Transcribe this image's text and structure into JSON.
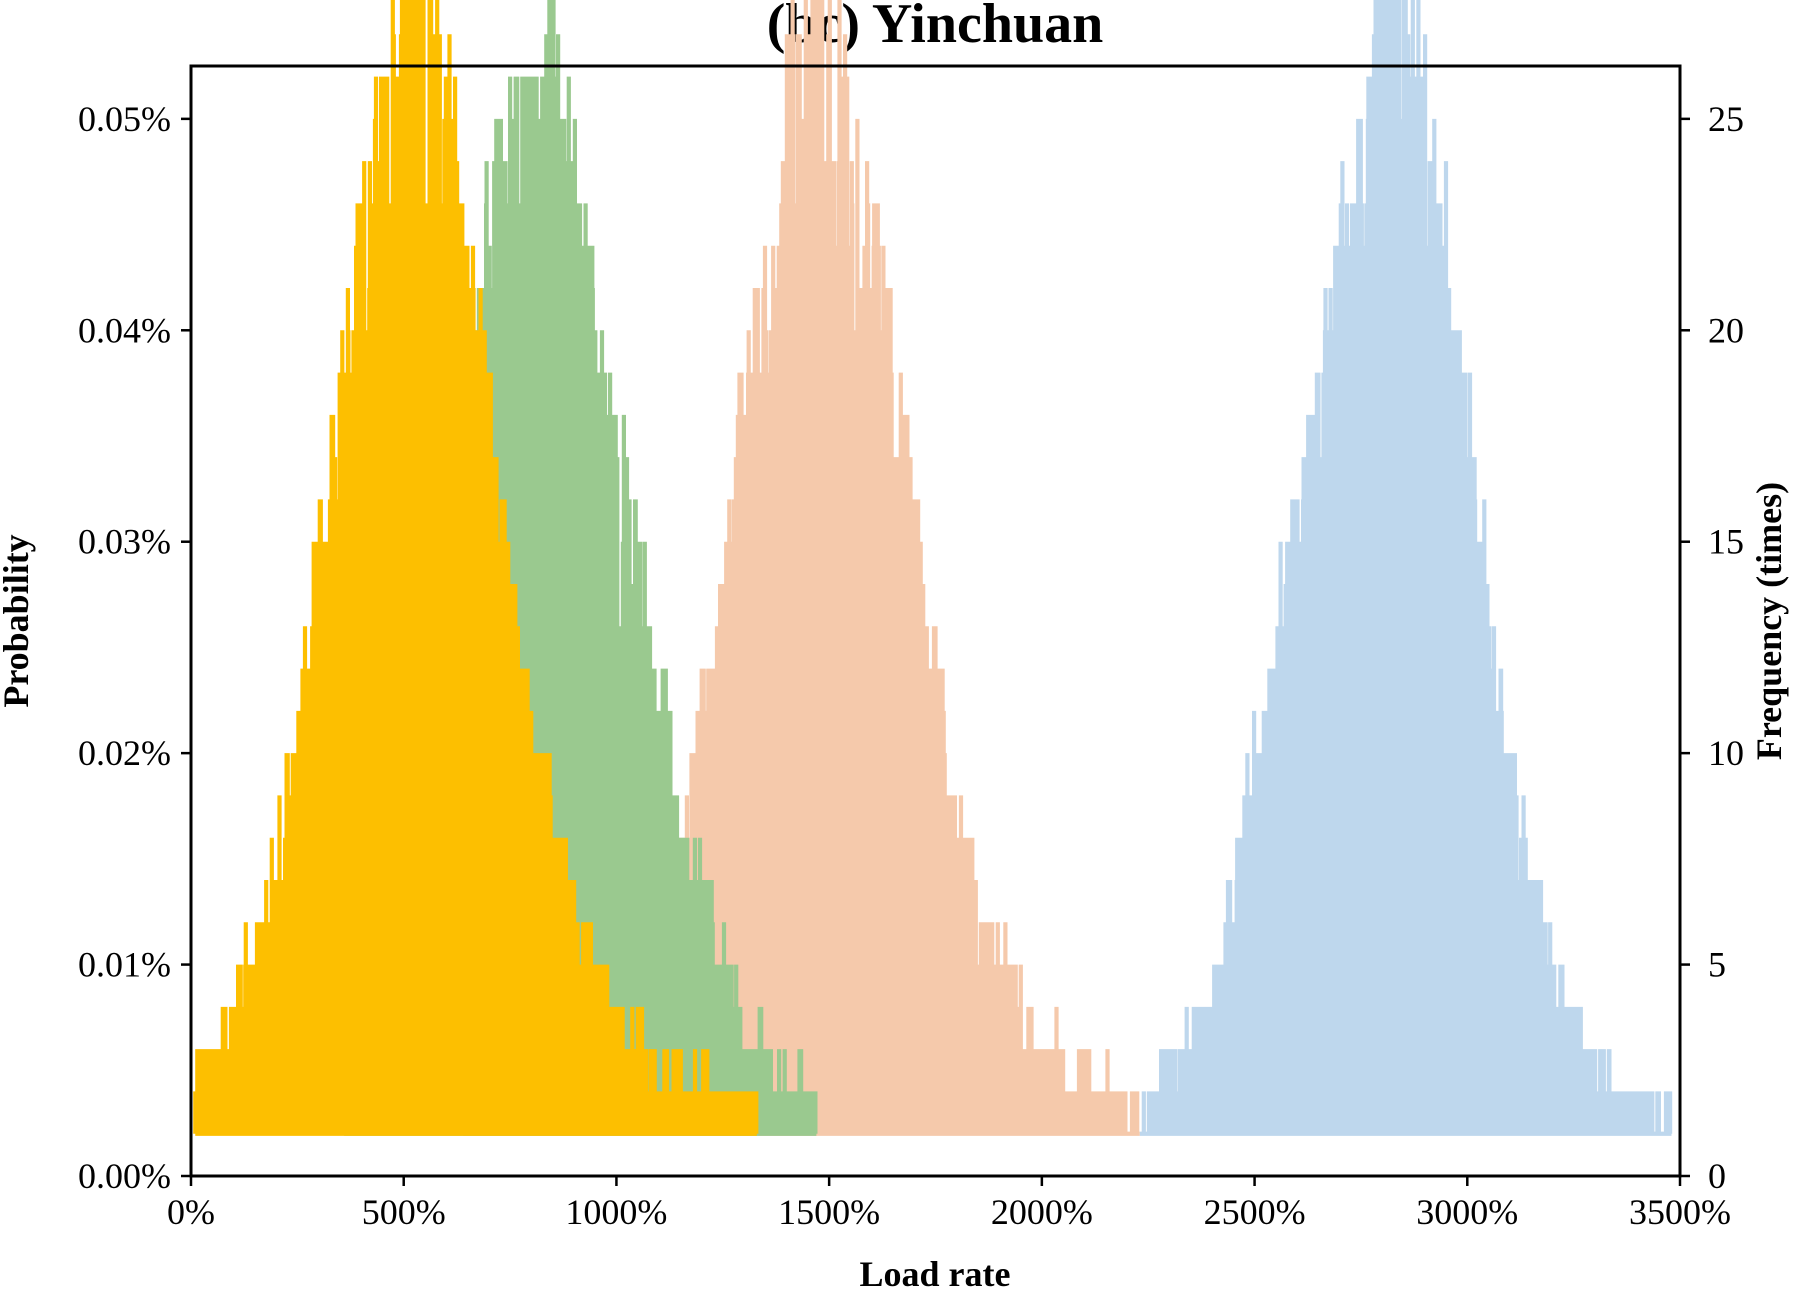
{
  "chart_data": {
    "type": "line",
    "title": "(bc) Yinchuan",
    "xlabel": "Load rate",
    "ylabel_left": "Probability",
    "ylabel_right": "Frequency (times)",
    "xlim": [
      0,
      35
    ],
    "ylim_left": [
      0,
      0.0525
    ],
    "ylim_right": [
      0,
      26.25
    ],
    "x_ticks": [
      0,
      5,
      10,
      15,
      20,
      25,
      30,
      35
    ],
    "x_tick_labels": [
      "0%",
      "500%",
      "1000%",
      "1500%",
      "2000%",
      "2500%",
      "3000%",
      "3500%"
    ],
    "y_left_ticks": [
      0,
      0.01,
      0.02,
      0.03,
      0.04,
      0.05
    ],
    "y_left_tick_labels": [
      "0.00%",
      "0.01%",
      "0.02%",
      "0.03%",
      "0.04%",
      "0.05%"
    ],
    "y_right_ticks": [
      0,
      5,
      10,
      15,
      20,
      25
    ],
    "y_right_tick_labels": [
      "0",
      "5",
      "10",
      "15",
      "20",
      "25"
    ],
    "grid": false,
    "series": [
      {
        "color": "#bed7ed",
        "axis": "right",
        "x_range": [
          22.3,
          34.8
        ],
        "approx_peak_x": 28.1,
        "approx_peak_frequency": 25,
        "baseline_frequency": 1,
        "envelope": [
          [
            22.3,
            1
          ],
          [
            23.0,
            2
          ],
          [
            24.0,
            3
          ],
          [
            25.0,
            8
          ],
          [
            26.0,
            13
          ],
          [
            27.0,
            18
          ],
          [
            28.0,
            23
          ],
          [
            28.1,
            25
          ],
          [
            29.0,
            21
          ],
          [
            30.0,
            15
          ],
          [
            31.0,
            8
          ],
          [
            32.0,
            4
          ],
          [
            33.0,
            2
          ],
          [
            34.0,
            1
          ],
          [
            34.8,
            1
          ]
        ]
      },
      {
        "color": "#f5c9ab",
        "axis": "right",
        "x_range": [
          6.4,
          22.3
        ],
        "approx_peak_x": 14.7,
        "approx_peak_frequency": 23,
        "baseline_frequency": 1,
        "envelope": [
          [
            6.4,
            1
          ],
          [
            11.0,
            3
          ],
          [
            12.0,
            9
          ],
          [
            13.0,
            15
          ],
          [
            14.0,
            21
          ],
          [
            14.7,
            23
          ],
          [
            15.5,
            21
          ],
          [
            16.5,
            16
          ],
          [
            17.5,
            10
          ],
          [
            18.5,
            5
          ],
          [
            19.5,
            3
          ],
          [
            20.5,
            2
          ],
          [
            22.3,
            1
          ]
        ]
      },
      {
        "color": "#9ac98f",
        "axis": "right",
        "x_range": [
          3.6,
          14.7
        ],
        "approx_peak_x": 8.6,
        "approx_peak_frequency": 22,
        "baseline_frequency": 1,
        "envelope": [
          [
            3.6,
            1
          ],
          [
            5.0,
            3
          ],
          [
            6.0,
            11
          ],
          [
            7.0,
            19
          ],
          [
            8.0,
            21
          ],
          [
            8.6,
            22
          ],
          [
            9.5,
            17
          ],
          [
            10.5,
            12
          ],
          [
            11.5,
            7
          ],
          [
            12.5,
            4
          ],
          [
            13.5,
            2
          ],
          [
            14.7,
            1
          ]
        ]
      },
      {
        "color": "#fdbf00",
        "axis": "right",
        "x_range": [
          0.1,
          13.3
        ],
        "approx_peak_x": 5.2,
        "approx_peak_frequency": 25,
        "baseline_frequency": 1,
        "envelope": [
          [
            0.1,
            2
          ],
          [
            1.0,
            3
          ],
          [
            2.0,
            6
          ],
          [
            3.0,
            12
          ],
          [
            4.0,
            19
          ],
          [
            5.0,
            23
          ],
          [
            5.2,
            25
          ],
          [
            6.0,
            21
          ],
          [
            7.0,
            15
          ],
          [
            8.0,
            9
          ],
          [
            9.0,
            5
          ],
          [
            10.0,
            3
          ],
          [
            11.0,
            2
          ],
          [
            13.3,
            1
          ]
        ]
      }
    ]
  }
}
